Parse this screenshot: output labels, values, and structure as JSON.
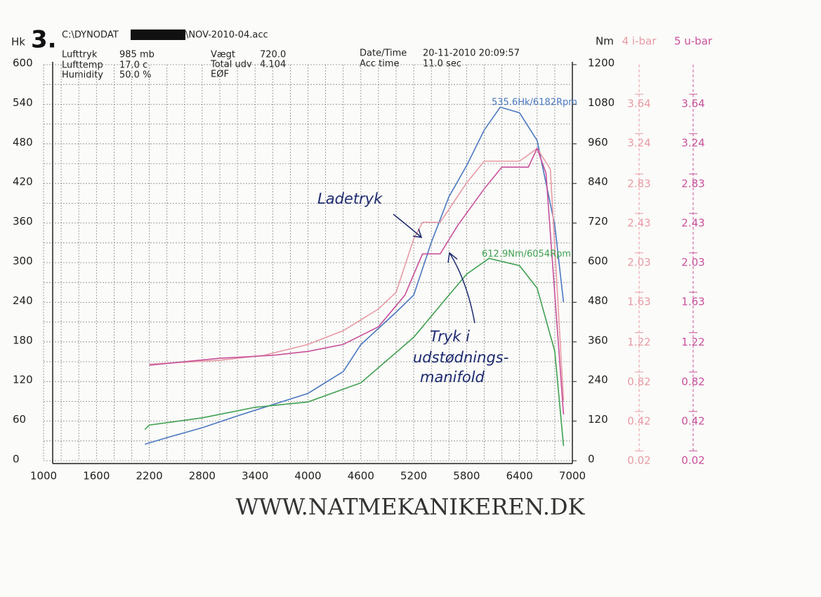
{
  "chart_data": {
    "type": "line",
    "figure_number": "3.",
    "file_path": [
      "C:\\DYNODAT",
      "\\NOV-2010-04.acc"
    ],
    "info": [
      {
        "label": "Lufttryk",
        "value": "985 mb"
      },
      {
        "label": "Lufttemp",
        "value": "17.0 c"
      },
      {
        "label": "Humidity",
        "value": "50.0 %"
      },
      {
        "label": "Vægt",
        "value": "720.0"
      },
      {
        "label": "Total udv",
        "value": "4.104"
      },
      {
        "label": "EØF",
        "value": ""
      },
      {
        "label": "Date/Time",
        "value": "20-11-2010 20:09:57"
      },
      {
        "label": "Acc time",
        "value": "11.0 sec"
      }
    ],
    "ylabel": "Hk",
    "y2label": "Nm",
    "footer": "WWW.NATMEKANIKEREN.DK",
    "xlim": [
      1000,
      7000
    ],
    "xticks": [
      1000,
      1600,
      2200,
      2800,
      3400,
      4000,
      4600,
      5200,
      5800,
      6400,
      7000
    ],
    "ylim": [
      0,
      600
    ],
    "yticks": [
      0,
      60,
      120,
      180,
      240,
      300,
      360,
      420,
      480,
      540,
      600
    ],
    "y2lim": [
      0,
      1200
    ],
    "y2ticks": [
      0,
      120,
      240,
      360,
      480,
      600,
      720,
      840,
      960,
      1080,
      1200
    ],
    "y3lim": [
      0.02,
      4.04
    ],
    "y3ticks": [
      0.02,
      0.42,
      0.82,
      1.22,
      1.63,
      2.03,
      2.43,
      2.83,
      3.24,
      3.64
    ],
    "y4lim": [
      0.02,
      4.04
    ],
    "y4ticks": [
      0.02,
      0.42,
      0.82,
      1.22,
      1.63,
      2.03,
      2.43,
      2.83,
      3.24,
      3.64
    ],
    "grid": true,
    "series": [
      {
        "color": "#4a78c0",
        "x": [
          2150,
          2400,
          2800,
          3200,
          3600,
          4000,
          4400,
          4600,
          5000,
          5200,
          5400,
          5600,
          5800,
          6000,
          6182,
          6400,
          6600,
          6800,
          6900
        ],
        "values": [
          25,
          35,
          50,
          68,
          85,
          102,
          135,
          176,
          225,
          251,
          331,
          400,
          447,
          501,
          535.6,
          527,
          485,
          357,
          240
        ]
      },
      {
        "color": "#3fa050",
        "axis": "y2",
        "x": [
          2150,
          2200,
          2800,
          3400,
          4000,
          4600,
          5200,
          5600,
          5800,
          6054,
          6400,
          6600,
          6800,
          6900
        ],
        "values": [
          95,
          108,
          130,
          162,
          178,
          236,
          374,
          502,
          565,
          612.9,
          591,
          523,
          332,
          45
        ]
      },
      {
        "name": "4 i-bar",
        "color": "#e89aa4",
        "axis": "y3",
        "x": [
          2200,
          3000,
          3500,
          4000,
          4400,
          4800,
          5000,
          5200,
          5300,
          5500,
          5800,
          6000,
          6200,
          6400,
          6600,
          6750,
          6900
        ],
        "values": [
          1.0,
          1.04,
          1.09,
          1.2,
          1.34,
          1.56,
          1.73,
          2.27,
          2.44,
          2.44,
          2.84,
          3.06,
          3.06,
          3.06,
          3.19,
          2.98,
          0.63
        ]
      },
      {
        "name": "5 u-bar",
        "color": "#c8509a",
        "axis": "y4",
        "x": [
          2200,
          3000,
          3600,
          4000,
          4400,
          4800,
          5100,
          5300,
          5500,
          5700,
          6000,
          6200,
          6500,
          6600,
          6700,
          6900
        ],
        "values": [
          0.99,
          1.06,
          1.09,
          1.13,
          1.2,
          1.38,
          1.7,
          2.12,
          2.12,
          2.41,
          2.78,
          3.0,
          3.0,
          3.19,
          2.94,
          0.49
        ]
      }
    ],
    "annotations": [
      "535.6Hk/6182Rpm",
      "612.9Nm/6054Rpm",
      "Ladetryk",
      "Tryk i",
      "udstødnings-",
      "manifold"
    ]
  }
}
